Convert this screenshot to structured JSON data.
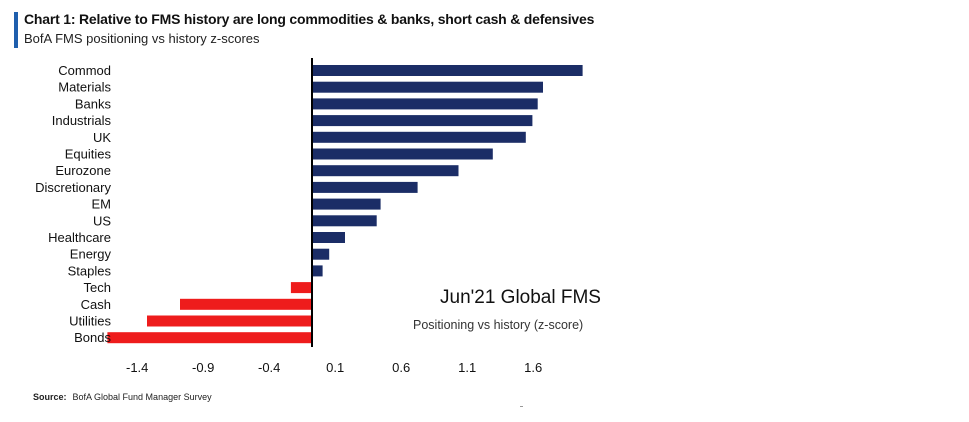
{
  "header": {
    "title": "Chart 1: Relative to FMS history are long commodities & banks, short cash & defensives",
    "subtitle": "BofA FMS positioning vs history z-scores"
  },
  "inset": {
    "title": "Jun'21 Global FMS",
    "subtitle": "Positioning vs history (z-score)"
  },
  "source": {
    "label": "Source:",
    "text": "BofA Global Fund Manager Survey"
  },
  "colors": {
    "positive": "#1b2d66",
    "negative": "#ee1c1c",
    "accent": "#1f5fad",
    "axis": "#000000"
  },
  "chart_data": {
    "type": "bar",
    "orientation": "horizontal",
    "title": "Chart 1: Relative to FMS history are long commodities & banks, short cash & defensives",
    "subtitle": "BofA FMS positioning vs history z-scores",
    "xlabel": "",
    "ylabel": "",
    "xlim": [
      -1.4,
      1.9
    ],
    "x_ticks": [
      "-1.4",
      "-0.9",
      "-0.4",
      "0.1",
      "0.6",
      "1.1",
      "1.6"
    ],
    "x_tick_values": [
      -1.4,
      -0.9,
      -0.4,
      0.1,
      0.6,
      1.1,
      1.6
    ],
    "categories": [
      "Commod",
      "Materials",
      "Banks",
      "Industrials",
      "UK",
      "Equities",
      "Eurozone",
      "Discretionary",
      "EM",
      "US",
      "Healthcare",
      "Energy",
      "Staples",
      "Tech",
      "Cash",
      "Utilities",
      "Bonds"
    ],
    "values": [
      2.05,
      1.75,
      1.71,
      1.67,
      1.62,
      1.37,
      1.11,
      0.8,
      0.52,
      0.49,
      0.25,
      0.13,
      0.08,
      -0.16,
      -1.0,
      -1.25,
      -1.55
    ],
    "grid": false
  }
}
